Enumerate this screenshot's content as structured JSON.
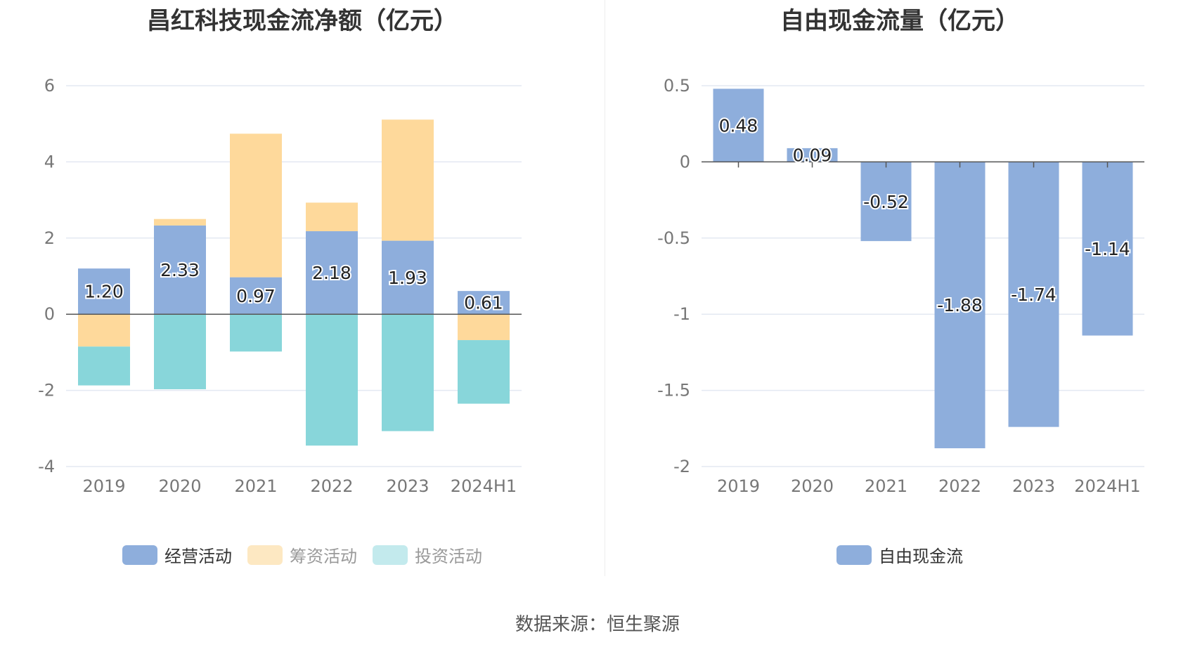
{
  "source": "数据来源：恒生聚源",
  "chart_data": [
    {
      "type": "bar",
      "stacked": true,
      "title": "昌红科技现金流净额（亿元）",
      "categories": [
        "2019",
        "2020",
        "2021",
        "2022",
        "2023",
        "2024H1"
      ],
      "series": [
        {
          "name": "经营活动",
          "color": "#8eaedc",
          "values": [
            1.2,
            2.33,
            0.97,
            2.18,
            1.93,
            0.61
          ],
          "labels": [
            "1.20",
            "2.33",
            "0.97",
            "2.18",
            "1.93",
            "0.61"
          ]
        },
        {
          "name": "筹资活动",
          "color": "#fed99b",
          "values": [
            -0.85,
            0.17,
            3.77,
            0.75,
            3.18,
            -0.68
          ]
        },
        {
          "name": "投资活动",
          "color": "#88d6da",
          "values": [
            -1.02,
            -1.97,
            -0.98,
            -3.45,
            -3.07,
            -1.67
          ]
        }
      ],
      "legend_colors": [
        "#8eaedc",
        "#fde8c2",
        "#c3eaed"
      ],
      "ylim": [
        -4,
        6
      ],
      "yticks": [
        -4,
        -2,
        0,
        2,
        4,
        6
      ],
      "ytick_labels": [
        "-4",
        "-2",
        "0",
        "2",
        "4",
        "6"
      ]
    },
    {
      "type": "bar",
      "title": "自由现金流量（亿元）",
      "categories": [
        "2019",
        "2020",
        "2021",
        "2022",
        "2023",
        "2024H1"
      ],
      "series": [
        {
          "name": "自由现金流",
          "color": "#8eaedc",
          "values": [
            0.48,
            0.09,
            -0.52,
            -1.88,
            -1.74,
            -1.14
          ],
          "labels": [
            "0.48",
            "0.09",
            "-0.52",
            "-1.88",
            "-1.74",
            "-1.14"
          ]
        }
      ],
      "legend_colors": [
        "#8eaedc"
      ],
      "ylim": [
        -2,
        0.5
      ],
      "yticks": [
        -2,
        -1.5,
        -1,
        -0.5,
        0,
        0.5
      ],
      "ytick_labels": [
        "-2",
        "-1.5",
        "-1",
        "-0.5",
        "0",
        "0.5"
      ]
    }
  ]
}
